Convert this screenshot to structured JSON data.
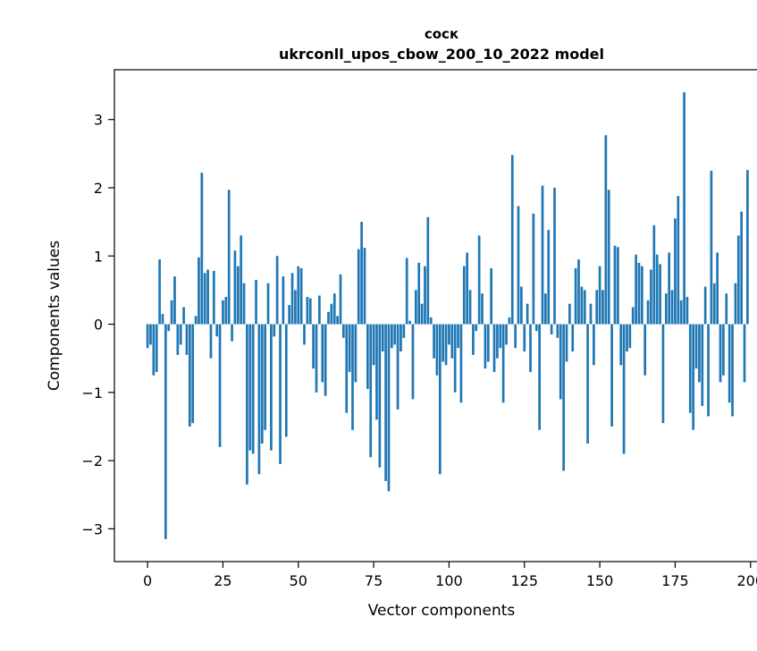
{
  "chart_data": {
    "type": "bar",
    "title_line1": "соск",
    "title_line2": "ukrconll_upos_cbow_200_10_2022 model",
    "xlabel": "Vector components",
    "ylabel": "Components values",
    "xlim": [
      -11,
      206
    ],
    "ylim": [
      -3.48,
      3.73
    ],
    "x_tick_values": [
      0,
      25,
      50,
      75,
      100,
      125,
      150,
      175,
      200
    ],
    "x_tick_labels": [
      "0",
      "25",
      "50",
      "75",
      "100",
      "125",
      "150",
      "175",
      "200"
    ],
    "y_tick_values": [
      -3,
      -2,
      -1,
      0,
      1,
      2,
      3
    ],
    "y_tick_labels": [
      "−3",
      "−2",
      "−1",
      "0",
      "1",
      "2",
      "3"
    ],
    "grid": false,
    "legend": "none",
    "bar_color": "#1f77b4",
    "bar_width": 0.8,
    "x_start": 0,
    "x_step": 1,
    "values": [
      -0.35,
      -0.3,
      -0.75,
      -0.7,
      0.95,
      0.15,
      -3.15,
      -0.1,
      0.35,
      0.7,
      -0.45,
      -0.3,
      0.25,
      -0.45,
      -1.5,
      -1.45,
      0.12,
      0.98,
      2.22,
      0.75,
      0.8,
      -0.5,
      0.78,
      -0.18,
      -1.8,
      0.35,
      0.4,
      1.97,
      -0.25,
      1.08,
      0.85,
      1.3,
      0.6,
      -2.35,
      -1.85,
      -1.9,
      0.65,
      -2.2,
      -1.75,
      -1.55,
      0.6,
      -1.85,
      -0.18,
      1.0,
      -2.05,
      0.7,
      -1.65,
      0.28,
      0.75,
      0.5,
      0.85,
      0.82,
      -0.3,
      0.4,
      0.38,
      -0.65,
      -1.0,
      0.42,
      -0.85,
      -1.05,
      0.18,
      0.3,
      0.45,
      0.12,
      0.73,
      -0.2,
      -1.3,
      -0.7,
      -1.55,
      -0.85,
      1.1,
      1.5,
      1.12,
      -0.95,
      -1.95,
      -0.6,
      -1.4,
      -2.1,
      -0.4,
      -2.3,
      -2.45,
      -0.35,
      -0.3,
      -1.25,
      -0.4,
      -0.2,
      0.97,
      0.05,
      -1.1,
      0.5,
      0.9,
      0.3,
      0.85,
      1.57,
      0.1,
      -0.5,
      -0.75,
      -2.2,
      -0.55,
      -0.6,
      -0.3,
      -0.5,
      -1.0,
      -0.35,
      -1.15,
      0.85,
      1.05,
      0.5,
      -0.45,
      -0.1,
      1.3,
      0.45,
      -0.65,
      -0.55,
      0.82,
      -0.7,
      -0.5,
      -0.35,
      -1.15,
      -0.3,
      0.1,
      2.48,
      -0.35,
      1.73,
      0.55,
      -0.4,
      0.3,
      -0.7,
      1.62,
      -0.1,
      -1.55,
      2.03,
      0.45,
      1.38,
      -0.15,
      2.0,
      -0.2,
      -1.1,
      -2.15,
      -0.55,
      0.3,
      -0.4,
      0.82,
      0.95,
      0.55,
      0.5,
      -1.75,
      0.3,
      -0.6,
      0.5,
      0.85,
      0.5,
      2.77,
      1.97,
      -1.5,
      1.15,
      1.13,
      -0.6,
      -1.9,
      -0.4,
      -0.35,
      0.25,
      1.02,
      0.9,
      0.85,
      -0.75,
      0.35,
      0.8,
      1.45,
      1.02,
      0.88,
      -1.45,
      0.45,
      1.05,
      0.5,
      1.55,
      1.88,
      0.35,
      3.4,
      0.4,
      -1.3,
      -1.55,
      -0.65,
      -0.85,
      -1.2,
      0.55,
      -1.35,
      2.25,
      0.6,
      1.05,
      -0.85,
      -0.75,
      0.45,
      -1.15,
      -1.35,
      0.6,
      1.3,
      1.65,
      -0.85,
      2.26
    ]
  }
}
